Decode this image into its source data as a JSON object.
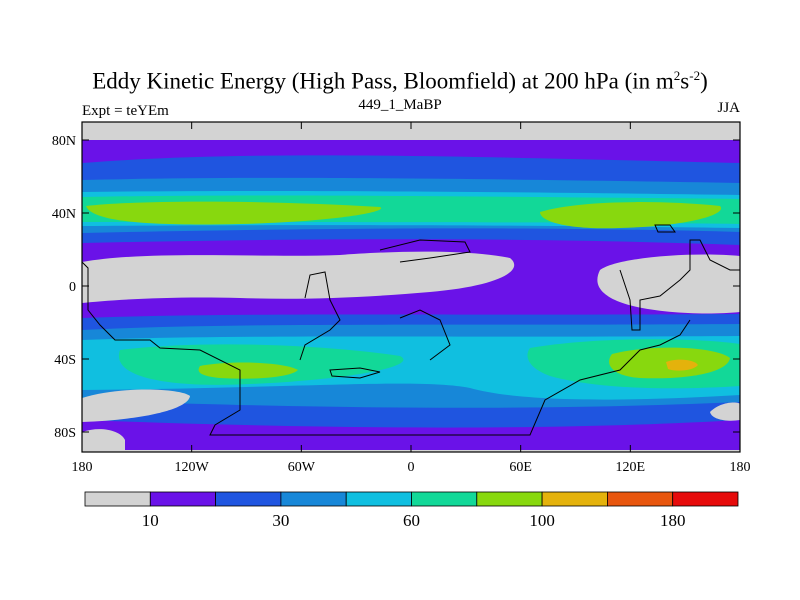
{
  "title": {
    "text": "Eddy Kinetic Energy (High Pass, Bloomfield) at 200 hPa (in m",
    "sup1": "2",
    "mid": "s",
    "sup2": "-2",
    "end": ")"
  },
  "subtitle": "449_1_MaBP",
  "experiment_label": "Expt = teYEm",
  "season_label": "JJA",
  "map": {
    "lat_ticks": [
      "80N",
      "40N",
      "0",
      "40S",
      "80S"
    ],
    "lon_ticks": [
      "180",
      "120W",
      "60W",
      "0",
      "60E",
      "120E",
      "180"
    ]
  },
  "colorbar": {
    "colors": [
      "#d3d3d3",
      "#6a12e8",
      "#1f55e0",
      "#1787d8",
      "#10bfe0",
      "#12d898",
      "#88d80e",
      "#e4b20c",
      "#e8560e",
      "#e60b0b"
    ],
    "labels": [
      {
        "text": "10",
        "boundary": 1
      },
      {
        "text": "30",
        "boundary": 3
      },
      {
        "text": "60",
        "boundary": 5
      },
      {
        "text": "100",
        "boundary": 7
      },
      {
        "text": "180",
        "boundary": 9
      }
    ]
  }
}
